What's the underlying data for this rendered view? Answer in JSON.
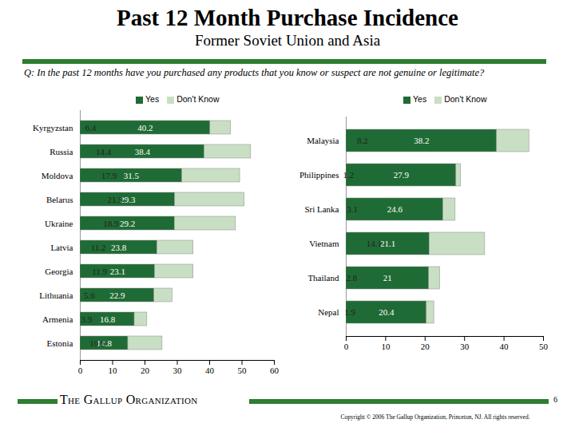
{
  "header": {
    "title": "Past 12 Month Purchase Incidence",
    "subtitle": "Former Soviet Union and Asia",
    "question": "Q: In the past 12 months have you purchased any products that you know or suspect are not genuine or legitimate?"
  },
  "footer": {
    "organization": "The Gallup Organization",
    "page": 6,
    "copyright": "Copyright © 2006 The Gallup Organization, Princeton, NJ. All rights reserved."
  },
  "chart_data": [
    {
      "type": "bar",
      "orientation": "horizontal",
      "stacked": true,
      "data_labels": true,
      "legend": "top",
      "grid": false,
      "categories": [
        "Kyrgyzstan",
        "Russia",
        "Moldova",
        "Belarus",
        "Ukraine",
        "Latvia",
        "Georgia",
        "Lithuania",
        "Armenia",
        "Estonia"
      ],
      "series": [
        {
          "name": "Yes",
          "color": "#1f6b35",
          "values": [
            40.2,
            38.4,
            31.5,
            29.3,
            29.2,
            23.8,
            23.1,
            22.9,
            16.8,
            14.8
          ]
        },
        {
          "name": "Don't Know",
          "color": "#c9dfc4",
          "values": [
            6.4,
            14.4,
            17.9,
            21.5,
            18.9,
            11.2,
            11.9,
            5.6,
            3.9,
            10.6
          ]
        }
      ],
      "xlim": [
        0,
        60
      ],
      "xticks": [
        0,
        10,
        20,
        30,
        40,
        50,
        60
      ]
    },
    {
      "type": "bar",
      "orientation": "horizontal",
      "stacked": true,
      "data_labels": true,
      "legend": "top",
      "grid": false,
      "categories": [
        "Malaysia",
        "Philippines",
        "Sri Lanka",
        "Vietnam",
        "Thailand",
        "Nepal"
      ],
      "series": [
        {
          "name": "Yes",
          "color": "#1f6b35",
          "values": [
            38.2,
            27.9,
            24.6,
            21.1,
            21,
            20.4
          ]
        },
        {
          "name": "Don't Know",
          "color": "#c9dfc4",
          "values": [
            8.2,
            1.2,
            3.1,
            14.1,
            2.8,
            1.9
          ]
        }
      ],
      "xlim": [
        0,
        50
      ],
      "xticks": [
        0,
        10,
        20,
        30,
        40,
        50
      ]
    }
  ]
}
